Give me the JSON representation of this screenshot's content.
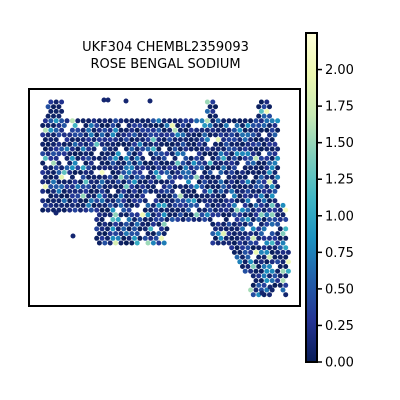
{
  "chart_data": {
    "type": "scatter",
    "title_lines": [
      "UKF304 CHEMBL2359093",
      "ROSE BENGAL SODIUM"
    ],
    "xlabel": "",
    "ylabel": "",
    "grid": false,
    "colormap": "YlGnBu",
    "colormap_stops": [
      "#081d58",
      "#253494",
      "#225ea8",
      "#1d91c0",
      "#41b6c4",
      "#7fcdbb",
      "#c7e9b4",
      "#edf8b1",
      "#ffffd9"
    ],
    "color_range": [
      0,
      2.25
    ],
    "colorbar": {
      "ticks": [
        0.0,
        0.25,
        0.5,
        0.75,
        1.0,
        1.25,
        1.5,
        1.75,
        2.0
      ],
      "tick_labels": [
        "0.00",
        "0.25",
        "0.50",
        "0.75",
        "1.00",
        "1.25",
        "1.50",
        "1.75",
        "2.00"
      ]
    }
  }
}
